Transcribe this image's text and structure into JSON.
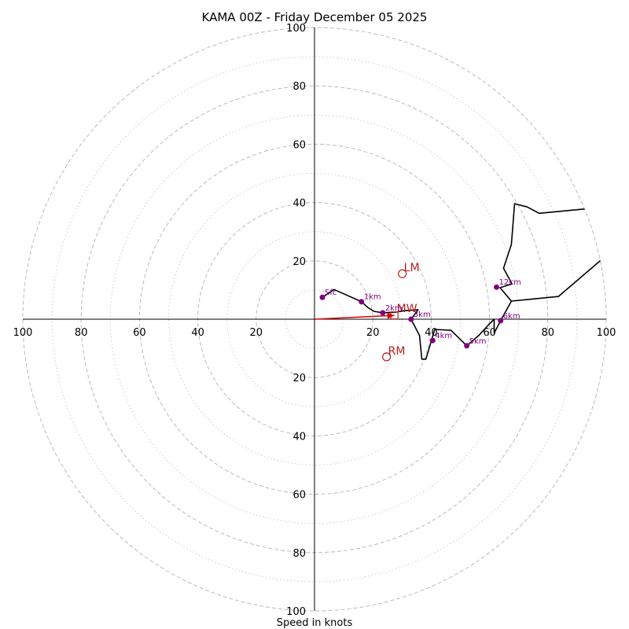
{
  "chart_data": {
    "type": "hodograph",
    "title": "KAMA 00Z - Friday December 05 2025",
    "xlabel": "Speed in knots",
    "max_speed": 100,
    "major_rings": [
      20,
      40,
      60,
      80,
      100
    ],
    "minor_rings": [
      10,
      30,
      50,
      70,
      90
    ],
    "x_ticks": [
      {
        "value": -100,
        "label": "100"
      },
      {
        "value": -80,
        "label": "80"
      },
      {
        "value": -60,
        "label": "60"
      },
      {
        "value": -40,
        "label": "40"
      },
      {
        "value": -20,
        "label": "20"
      },
      {
        "value": 20,
        "label": "20"
      },
      {
        "value": 40,
        "label": "40"
      },
      {
        "value": 60,
        "label": "60"
      },
      {
        "value": 80,
        "label": "80"
      },
      {
        "value": 100,
        "label": "100"
      }
    ],
    "y_ticks": [
      {
        "value": 100,
        "label": "100"
      },
      {
        "value": 80,
        "label": "80"
      },
      {
        "value": 60,
        "label": "60"
      },
      {
        "value": 40,
        "label": "40"
      },
      {
        "value": 20,
        "label": "20"
      },
      {
        "value": -20,
        "label": "20"
      },
      {
        "value": -40,
        "label": "40"
      },
      {
        "value": -60,
        "label": "60"
      },
      {
        "value": -80,
        "label": "80"
      },
      {
        "value": -100,
        "label": "100"
      }
    ],
    "trace": {
      "name": "wind profile",
      "color": "#000000",
      "points": [
        [
          2.7,
          7.5
        ],
        [
          6.7,
          10.2
        ],
        [
          16.1,
          6.0
        ],
        [
          18.3,
          4.0
        ],
        [
          20.4,
          2.7
        ],
        [
          23.4,
          2.2
        ],
        [
          27.7,
          2.4
        ],
        [
          31.2,
          3.0
        ],
        [
          35.5,
          3.2
        ],
        [
          33.1,
          0.0
        ],
        [
          36.0,
          -5.6
        ],
        [
          36.8,
          -13.7
        ],
        [
          38.2,
          -13.7
        ],
        [
          41.2,
          -3.5
        ],
        [
          46.8,
          -3.8
        ],
        [
          52.2,
          -9.1
        ],
        [
          56.5,
          -5.4
        ],
        [
          59.7,
          -1.9
        ],
        [
          61.6,
          0.0
        ],
        [
          61.6,
          -4.8
        ],
        [
          63.8,
          -0.5
        ],
        [
          67.5,
          6.2
        ],
        [
          83.6,
          7.8
        ],
        [
          100,
          21.8
        ]
      ],
      "continuation": [
        [
          67.5,
          6.2
        ],
        [
          63.6,
          10.8
        ],
        [
          67.7,
          12.1
        ],
        [
          64.8,
          17.5
        ],
        [
          67.5,
          25.6
        ],
        [
          68.6,
          39.6
        ],
        [
          72.9,
          38.5
        ],
        [
          77.0,
          36.3
        ],
        [
          100,
          38.5
        ],
        [
          95.4,
          35.0
        ],
        [
          100,
          36.8
        ]
      ]
    },
    "height_markers": [
      {
        "label": "Sfc",
        "u": 2.7,
        "v": 7.5
      },
      {
        "label": "1km",
        "u": 16.1,
        "v": 6.0
      },
      {
        "label": "2km",
        "u": 23.4,
        "v": 2.2
      },
      {
        "label": "3km",
        "u": 33.1,
        "v": 0.0
      },
      {
        "label": "4km",
        "u": 40.5,
        "v": -7.3
      },
      {
        "label": "5km",
        "u": 52.2,
        "v": -9.1
      },
      {
        "label": "6km",
        "u": 63.8,
        "v": -0.5
      },
      {
        "label": "12km",
        "u": 62.4,
        "v": 11.0
      }
    ],
    "motion_markers": [
      {
        "label": "LM",
        "u": 30.1,
        "v": 15.6,
        "shape": "circle"
      },
      {
        "label": "RM",
        "u": 24.7,
        "v": -12.9,
        "shape": "circle"
      },
      {
        "label": "MW",
        "u": 27.4,
        "v": 1.3,
        "shape": "square"
      }
    ],
    "shear_vector": {
      "from": [
        0,
        0
      ],
      "to": [
        27.4,
        1.3
      ],
      "color": "#dd0000"
    },
    "colors": {
      "trace": "#000000",
      "height_marker": "#800080",
      "motion": "#b22222",
      "vector": "#dd0000",
      "grid": "#bbbbbb"
    }
  }
}
